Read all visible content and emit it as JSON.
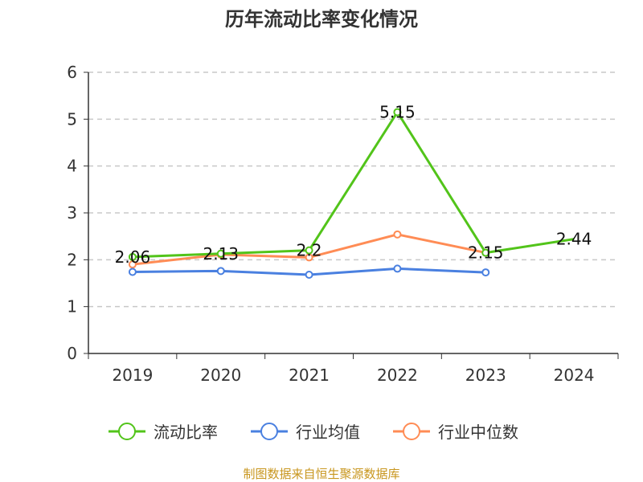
{
  "chart_data": {
    "type": "line",
    "title": "历年流动比率变化情况",
    "categories": [
      "2019",
      "2020",
      "2021",
      "2022",
      "2023",
      "2024"
    ],
    "ylim": [
      0,
      6
    ],
    "yticks": [
      "0",
      "1",
      "2",
      "3",
      "4",
      "5",
      "6"
    ],
    "grid": true,
    "legend_position": "bottom",
    "series": [
      {
        "name": "流动比率",
        "color": "#52c41a",
        "values": [
          2.06,
          2.13,
          2.2,
          5.15,
          2.15,
          2.44
        ],
        "labels": [
          "2.06",
          "2.13",
          "2.2",
          "5.15",
          "2.15",
          "2.44"
        ]
      },
      {
        "name": "行业均值",
        "color": "#4a80e0",
        "values": [
          1.74,
          1.76,
          1.68,
          1.81,
          1.73,
          null
        ]
      },
      {
        "name": "行业中位数",
        "color": "#ff8c55",
        "values": [
          1.9,
          2.11,
          2.05,
          2.54,
          2.15,
          null
        ]
      }
    ],
    "source": "制图数据来自恒生聚源数据库"
  }
}
